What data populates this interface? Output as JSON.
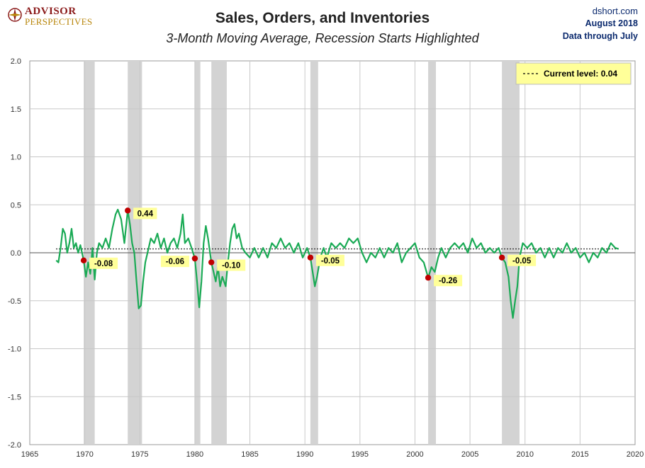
{
  "branding": {
    "logo_line1": "ADVISOR",
    "logo_line2": "PERSPECTIVES",
    "site": "dshort.com",
    "date": "August 2018",
    "data_through": "Data through July"
  },
  "colors": {
    "line": "#1aaa55",
    "recession": "#d3d3d3",
    "marker": "#c00000",
    "label_bg": "#ffff99",
    "brand_red": "#8b1a1a",
    "brand_gold": "#b8860b",
    "info_blue": "#0b2a6e"
  },
  "chart_data": {
    "type": "line",
    "title": "Sales, Orders, and Inventories",
    "subtitle": "3-Month Moving Average, Recession Starts Highlighted",
    "xlabel": "",
    "ylabel": "",
    "xlim": [
      1965,
      2020
    ],
    "ylim": [
      -2.0,
      2.0
    ],
    "x_ticks": [
      "1965",
      "1970",
      "1975",
      "1980",
      "1985",
      "1990",
      "1995",
      "2000",
      "2005",
      "2010",
      "2015",
      "2020"
    ],
    "y_ticks": [
      "2.0",
      "1.5",
      "1.0",
      "0.5",
      "0.0",
      "-0.5",
      "-1.0",
      "-1.5",
      "-2.0"
    ],
    "grid": true,
    "legend_position": "top-right",
    "legend_label": "Current level: 0.04",
    "current_level": 0.04,
    "recessions": [
      [
        1969.9,
        1970.9
      ],
      [
        1973.9,
        1975.2
      ],
      [
        1980.0,
        1980.5
      ],
      [
        1981.5,
        1982.9
      ],
      [
        1990.5,
        1991.2
      ],
      [
        2001.2,
        2001.9
      ],
      [
        2007.9,
        2009.5
      ]
    ],
    "recession_start_values": [
      {
        "x": 1969.9,
        "y": -0.08,
        "label": "-0.08",
        "side": "right"
      },
      {
        "x": 1973.9,
        "y": 0.44,
        "label": "0.44",
        "side": "right"
      },
      {
        "x": 1980.0,
        "y": -0.06,
        "label": "-0.06",
        "side": "left"
      },
      {
        "x": 1981.5,
        "y": -0.1,
        "label": "-0.10",
        "side": "right"
      },
      {
        "x": 1990.5,
        "y": -0.05,
        "label": "-0.05",
        "side": "right"
      },
      {
        "x": 2001.2,
        "y": -0.26,
        "label": "-0.26",
        "side": "right"
      },
      {
        "x": 2007.9,
        "y": -0.05,
        "label": "-0.05",
        "side": "right"
      }
    ],
    "series": [
      {
        "values": [
          [
            1967.4,
            -0.08
          ],
          [
            1967.6,
            -0.1
          ],
          [
            1967.8,
            0.05
          ],
          [
            1968.0,
            0.25
          ],
          [
            1968.2,
            0.2
          ],
          [
            1968.4,
            0.0
          ],
          [
            1968.6,
            0.1
          ],
          [
            1968.8,
            0.25
          ],
          [
            1969.0,
            0.05
          ],
          [
            1969.2,
            0.1
          ],
          [
            1969.4,
            0.0
          ],
          [
            1969.6,
            0.08
          ],
          [
            1969.9,
            -0.08
          ],
          [
            1970.1,
            -0.25
          ],
          [
            1970.3,
            -0.1
          ],
          [
            1970.5,
            -0.22
          ],
          [
            1970.7,
            0.05
          ],
          [
            1970.9,
            -0.28
          ],
          [
            1971.1,
            0.0
          ],
          [
            1971.3,
            0.1
          ],
          [
            1971.6,
            0.05
          ],
          [
            1971.9,
            0.15
          ],
          [
            1972.2,
            0.05
          ],
          [
            1972.5,
            0.25
          ],
          [
            1972.8,
            0.4
          ],
          [
            1973.0,
            0.45
          ],
          [
            1973.3,
            0.35
          ],
          [
            1973.6,
            0.1
          ],
          [
            1973.9,
            0.44
          ],
          [
            1974.1,
            0.3
          ],
          [
            1974.3,
            0.1
          ],
          [
            1974.5,
            0.0
          ],
          [
            1974.7,
            -0.3
          ],
          [
            1974.9,
            -0.58
          ],
          [
            1975.1,
            -0.55
          ],
          [
            1975.3,
            -0.3
          ],
          [
            1975.5,
            -0.1
          ],
          [
            1975.8,
            0.05
          ],
          [
            1976.0,
            0.15
          ],
          [
            1976.3,
            0.1
          ],
          [
            1976.6,
            0.2
          ],
          [
            1976.9,
            0.05
          ],
          [
            1977.2,
            0.15
          ],
          [
            1977.5,
            0.0
          ],
          [
            1977.8,
            0.1
          ],
          [
            1978.1,
            0.15
          ],
          [
            1978.4,
            0.05
          ],
          [
            1978.7,
            0.2
          ],
          [
            1978.9,
            0.4
          ],
          [
            1979.1,
            0.1
          ],
          [
            1979.4,
            0.15
          ],
          [
            1979.7,
            0.05
          ],
          [
            1980.0,
            -0.06
          ],
          [
            1980.2,
            -0.3
          ],
          [
            1980.4,
            -0.57
          ],
          [
            1980.6,
            -0.3
          ],
          [
            1980.8,
            0.1
          ],
          [
            1981.0,
            0.28
          ],
          [
            1981.2,
            0.15
          ],
          [
            1981.5,
            -0.1
          ],
          [
            1981.7,
            -0.2
          ],
          [
            1981.9,
            -0.3
          ],
          [
            1982.1,
            -0.15
          ],
          [
            1982.3,
            -0.35
          ],
          [
            1982.5,
            -0.25
          ],
          [
            1982.8,
            -0.35
          ],
          [
            1983.0,
            -0.1
          ],
          [
            1983.2,
            0.1
          ],
          [
            1983.4,
            0.25
          ],
          [
            1983.6,
            0.3
          ],
          [
            1983.8,
            0.15
          ],
          [
            1984.0,
            0.2
          ],
          [
            1984.3,
            0.05
          ],
          [
            1984.6,
            0.0
          ],
          [
            1985.0,
            -0.05
          ],
          [
            1985.4,
            0.05
          ],
          [
            1985.8,
            -0.05
          ],
          [
            1986.2,
            0.05
          ],
          [
            1986.6,
            -0.05
          ],
          [
            1987.0,
            0.1
          ],
          [
            1987.4,
            0.05
          ],
          [
            1987.8,
            0.15
          ],
          [
            1988.2,
            0.05
          ],
          [
            1988.6,
            0.1
          ],
          [
            1989.0,
            0.0
          ],
          [
            1989.4,
            0.1
          ],
          [
            1989.8,
            -0.05
          ],
          [
            1990.2,
            0.05
          ],
          [
            1990.5,
            -0.05
          ],
          [
            1990.7,
            -0.2
          ],
          [
            1990.9,
            -0.35
          ],
          [
            1991.1,
            -0.25
          ],
          [
            1991.4,
            -0.05
          ],
          [
            1991.7,
            0.05
          ],
          [
            1992.0,
            -0.05
          ],
          [
            1992.4,
            0.1
          ],
          [
            1992.8,
            0.05
          ],
          [
            1993.2,
            0.1
          ],
          [
            1993.6,
            0.05
          ],
          [
            1994.0,
            0.15
          ],
          [
            1994.4,
            0.1
          ],
          [
            1994.8,
            0.15
          ],
          [
            1995.2,
            0.0
          ],
          [
            1995.6,
            -0.1
          ],
          [
            1996.0,
            0.0
          ],
          [
            1996.4,
            -0.05
          ],
          [
            1996.8,
            0.05
          ],
          [
            1997.2,
            -0.05
          ],
          [
            1997.6,
            0.05
          ],
          [
            1998.0,
            0.0
          ],
          [
            1998.4,
            0.1
          ],
          [
            1998.8,
            -0.1
          ],
          [
            1999.2,
            0.0
          ],
          [
            1999.6,
            0.05
          ],
          [
            2000.0,
            0.1
          ],
          [
            2000.4,
            -0.05
          ],
          [
            2000.8,
            -0.1
          ],
          [
            2001.2,
            -0.26
          ],
          [
            2001.5,
            -0.15
          ],
          [
            2001.8,
            -0.2
          ],
          [
            2002.1,
            -0.05
          ],
          [
            2002.4,
            0.05
          ],
          [
            2002.8,
            -0.05
          ],
          [
            2003.2,
            0.05
          ],
          [
            2003.6,
            0.1
          ],
          [
            2004.0,
            0.05
          ],
          [
            2004.4,
            0.1
          ],
          [
            2004.8,
            0.0
          ],
          [
            2005.2,
            0.15
          ],
          [
            2005.6,
            0.05
          ],
          [
            2006.0,
            0.1
          ],
          [
            2006.4,
            0.0
          ],
          [
            2006.8,
            0.05
          ],
          [
            2007.2,
            0.0
          ],
          [
            2007.6,
            0.05
          ],
          [
            2007.9,
            -0.05
          ],
          [
            2008.2,
            -0.1
          ],
          [
            2008.5,
            -0.25
          ],
          [
            2008.7,
            -0.5
          ],
          [
            2008.9,
            -0.68
          ],
          [
            2009.1,
            -0.5
          ],
          [
            2009.3,
            -0.35
          ],
          [
            2009.5,
            -0.05
          ],
          [
            2009.8,
            0.1
          ],
          [
            2010.2,
            0.05
          ],
          [
            2010.6,
            0.1
          ],
          [
            2011.0,
            0.0
          ],
          [
            2011.4,
            0.05
          ],
          [
            2011.8,
            -0.05
          ],
          [
            2012.2,
            0.05
          ],
          [
            2012.6,
            -0.05
          ],
          [
            2013.0,
            0.05
          ],
          [
            2013.4,
            0.0
          ],
          [
            2013.8,
            0.1
          ],
          [
            2014.2,
            0.0
          ],
          [
            2014.6,
            0.05
          ],
          [
            2015.0,
            -0.05
          ],
          [
            2015.4,
            0.0
          ],
          [
            2015.8,
            -0.1
          ],
          [
            2016.2,
            0.0
          ],
          [
            2016.6,
            -0.05
          ],
          [
            2017.0,
            0.05
          ],
          [
            2017.4,
            0.0
          ],
          [
            2017.8,
            0.1
          ],
          [
            2018.2,
            0.05
          ],
          [
            2018.5,
            0.04
          ]
        ]
      }
    ]
  }
}
